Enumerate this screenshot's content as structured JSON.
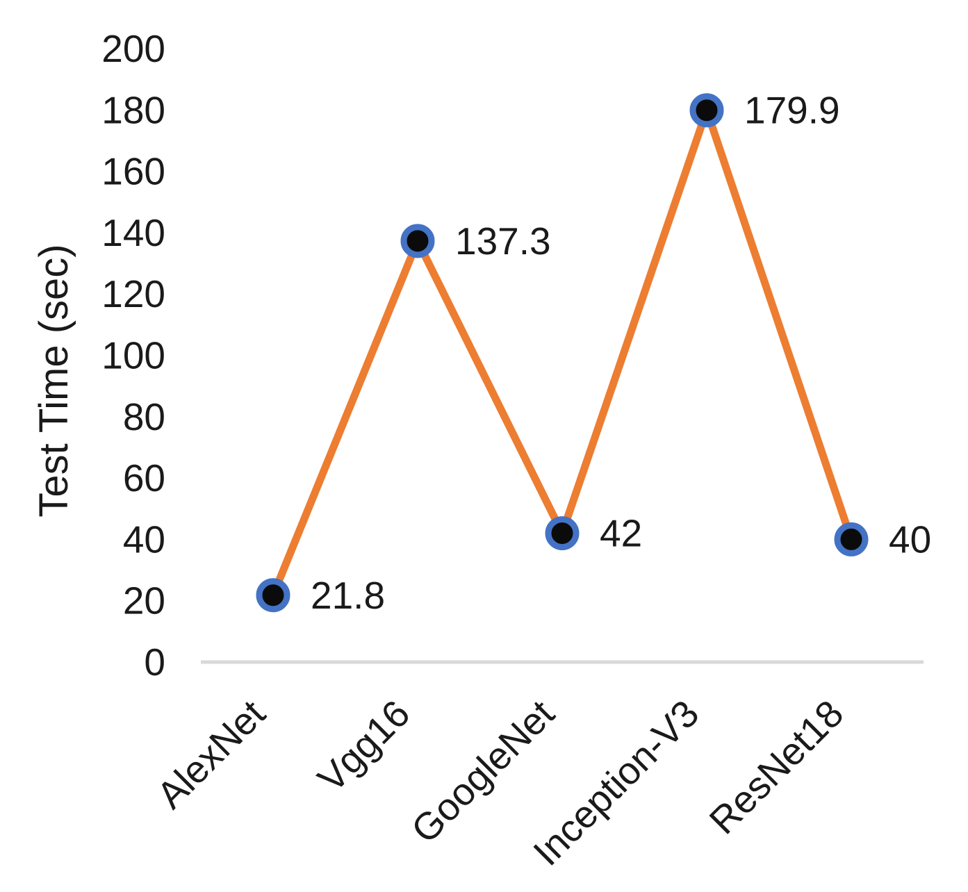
{
  "chart_data": {
    "type": "line",
    "categories": [
      "AlexNet",
      "Vgg16",
      "GoogleNet",
      "Inception-V3",
      "ResNet18"
    ],
    "values": [
      21.8,
      137.3,
      42,
      179.9,
      40
    ],
    "data_labels": [
      "21.8",
      "137.3",
      "42",
      "179.9",
      "40"
    ],
    "title": "",
    "xlabel": "",
    "ylabel": "Test Time (sec)",
    "ylim": [
      0,
      200
    ],
    "yticks": [
      0,
      20,
      40,
      60,
      80,
      100,
      120,
      140,
      160,
      180,
      200
    ],
    "grid": false,
    "legend_position": "none",
    "marker_style": "circle",
    "colors": {
      "line": "#ED7D31",
      "marker_fill": "#0b0b0b",
      "marker_ring": "#4472C4",
      "axis_line": "#D9D9D9",
      "text": "#1a1a1a"
    }
  }
}
